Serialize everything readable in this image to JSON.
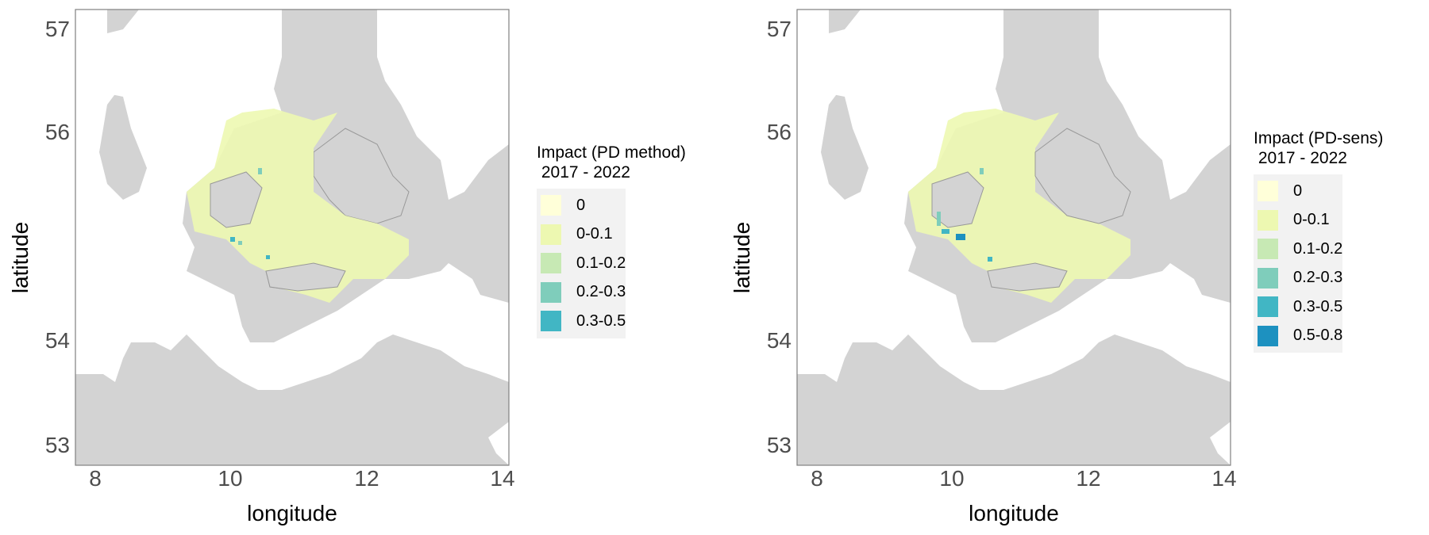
{
  "maps": [
    {
      "legend_title": "Impact (PD method)\n 2017 - 2022",
      "xlabel": "longitude",
      "ylabel": "latitude",
      "xticks": [
        "8",
        "10",
        "12",
        "14"
      ],
      "yticks": [
        "57",
        "56",
        "54",
        "53"
      ],
      "legend": [
        {
          "label": "0",
          "color": "#ffffd9"
        },
        {
          "label": "0-0.1",
          "color": "#edf8b1"
        },
        {
          "label": "0.1-0.2",
          "color": "#c7e9b4"
        },
        {
          "label": "0.2-0.3",
          "color": "#7fcdbb"
        },
        {
          "label": "0.3-0.5",
          "color": "#41b6c4"
        }
      ]
    },
    {
      "legend_title": "Impact (PD-sens)\n 2017 - 2022",
      "xlabel": "longitude",
      "ylabel": "latitude",
      "xticks": [
        "8",
        "10",
        "12",
        "14"
      ],
      "yticks": [
        "57",
        "56",
        "54",
        "53"
      ],
      "legend": [
        {
          "label": "0",
          "color": "#ffffd9"
        },
        {
          "label": "0-0.1",
          "color": "#edf8b1"
        },
        {
          "label": "0.1-0.2",
          "color": "#c7e9b4"
        },
        {
          "label": "0.2-0.3",
          "color": "#7fcdbb"
        },
        {
          "label": "0.3-0.5",
          "color": "#41b6c4"
        },
        {
          "label": "0.5-0.8",
          "color": "#1d91c0"
        }
      ]
    }
  ],
  "colors": {
    "land": "#d3d3d3",
    "border": "#999999",
    "sea": "#ffffff"
  }
}
